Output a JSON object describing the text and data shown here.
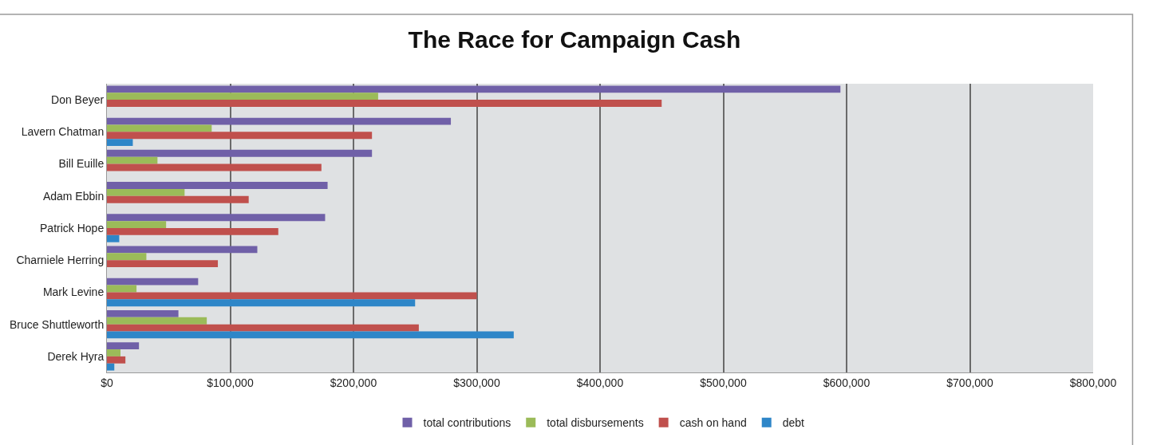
{
  "chart_data": {
    "type": "bar",
    "orientation": "horizontal",
    "title": "The Race for Campaign Cash",
    "categories": [
      "Don Beyer",
      "Lavern Chatman",
      "Bill Euille",
      "Adam Ebbin",
      "Patrick Hope",
      "Charniele Herring",
      "Mark Levine",
      "Bruce Shuttleworth",
      "Derek Hyra"
    ],
    "series": [
      {
        "name": "total contributions",
        "color": "#7060a8",
        "values": [
          595000,
          279000,
          215000,
          179000,
          177000,
          122000,
          74000,
          58000,
          26000
        ]
      },
      {
        "name": "total disbursements",
        "color": "#9bbb59",
        "values": [
          220000,
          85000,
          41000,
          63000,
          48000,
          32000,
          24000,
          81000,
          11000
        ]
      },
      {
        "name": "cash on hand",
        "color": "#c0504d",
        "values": [
          450000,
          215000,
          174000,
          115000,
          139000,
          90000,
          300000,
          253000,
          15000
        ]
      },
      {
        "name": "debt",
        "color": "#2e86c8",
        "values": [
          null,
          21000,
          null,
          null,
          10000,
          null,
          250000,
          330000,
          6000
        ]
      }
    ],
    "xlim": [
      0,
      800000
    ],
    "xticks": [
      {
        "value": 0,
        "label": "$0"
      },
      {
        "value": 100000,
        "label": "$100,000"
      },
      {
        "value": 200000,
        "label": "$200,000"
      },
      {
        "value": 300000,
        "label": "$300,000"
      },
      {
        "value": 400000,
        "label": "$400,000"
      },
      {
        "value": 500000,
        "label": "$500,000"
      },
      {
        "value": 600000,
        "label": "$600,000"
      },
      {
        "value": 700000,
        "label": "$700,000"
      },
      {
        "value": 800000,
        "label": "$800,000"
      }
    ],
    "grid": "x",
    "legend": "bottom"
  }
}
